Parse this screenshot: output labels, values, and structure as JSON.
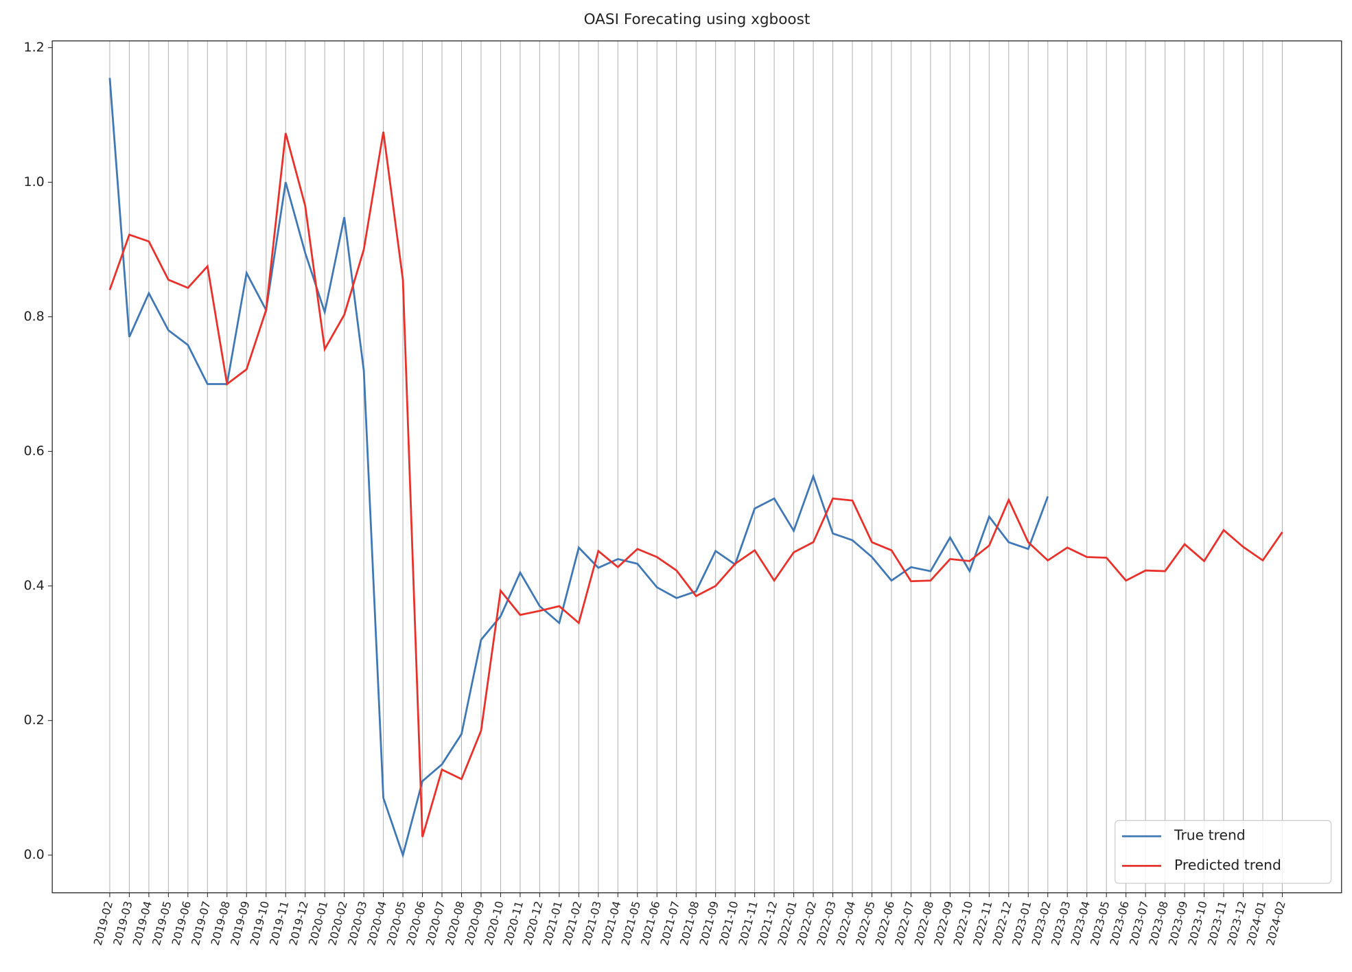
{
  "chart_data": {
    "type": "line",
    "title": "OASI Forecating using xgboost",
    "categories": [
      "2019-02",
      "2019-03",
      "2019-04",
      "2019-05",
      "2019-06",
      "2019-07",
      "2019-08",
      "2019-09",
      "2019-10",
      "2019-11",
      "2019-12",
      "2020-01",
      "2020-02",
      "2020-03",
      "2020-04",
      "2020-05",
      "2020-06",
      "2020-07",
      "2020-08",
      "2020-09",
      "2020-10",
      "2020-11",
      "2020-12",
      "2021-01",
      "2021-02",
      "2021-03",
      "2021-04",
      "2021-05",
      "2021-06",
      "2021-07",
      "2021-08",
      "2021-09",
      "2021-10",
      "2021-11",
      "2021-12",
      "2022-01",
      "2022-02",
      "2022-03",
      "2022-04",
      "2022-05",
      "2022-06",
      "2022-07",
      "2022-08",
      "2022-09",
      "2022-10",
      "2022-11",
      "2022-12",
      "2023-01",
      "2023-02",
      "2023-03",
      "2023-04",
      "2023-05",
      "2023-06",
      "2023-07",
      "2023-08",
      "2023-09",
      "2023-10",
      "2023-11",
      "2023-12",
      "2024-01",
      "2024-02"
    ],
    "series": [
      {
        "name": "True trend",
        "color": "#3f78b4",
        "values": [
          1.155,
          0.77,
          0.835,
          0.78,
          0.758,
          0.7,
          0.7,
          0.865,
          0.81,
          1.0,
          0.895,
          0.807,
          0.948,
          0.72,
          0.085,
          0.0,
          0.11,
          0.135,
          0.18,
          0.32,
          0.355,
          0.42,
          0.37,
          0.345,
          0.457,
          0.427,
          0.44,
          0.433,
          0.398,
          0.382,
          0.392,
          0.452,
          0.432,
          0.515,
          0.53,
          0.482,
          0.563,
          0.478,
          0.468,
          0.443,
          0.408,
          0.428,
          0.422,
          0.472,
          0.422,
          0.503,
          0.465,
          0.455,
          0.533,
          null,
          null,
          null,
          null,
          null,
          null,
          null,
          null,
          null,
          null,
          null,
          null
        ]
      },
      {
        "name": "Predicted trend",
        "color": "#e8312a",
        "values": [
          0.84,
          0.922,
          0.912,
          0.855,
          0.843,
          0.875,
          0.7,
          0.722,
          0.81,
          1.073,
          0.965,
          0.752,
          0.803,
          0.9,
          1.075,
          0.855,
          0.027,
          0.127,
          0.113,
          0.185,
          0.393,
          0.357,
          0.363,
          0.37,
          0.345,
          0.452,
          0.428,
          0.455,
          0.443,
          0.423,
          0.385,
          0.4,
          0.433,
          0.453,
          0.408,
          0.45,
          0.465,
          0.53,
          0.527,
          0.465,
          0.453,
          0.407,
          0.408,
          0.44,
          0.437,
          0.46,
          0.528,
          0.465,
          0.438,
          0.457,
          0.443,
          0.442,
          0.408,
          0.423,
          0.422,
          0.462,
          0.437,
          0.483,
          0.458,
          0.438,
          0.48
        ]
      }
    ],
    "ylim": [
      -0.056,
      1.21
    ],
    "yticks": [
      {
        "value": 0,
        "label": "0.0"
      },
      0.2,
      0.4,
      0.6,
      0.8,
      {
        "value": 1,
        "label": "1.0"
      },
      1.2
    ],
    "grid": "x",
    "legend": "lower right"
  }
}
